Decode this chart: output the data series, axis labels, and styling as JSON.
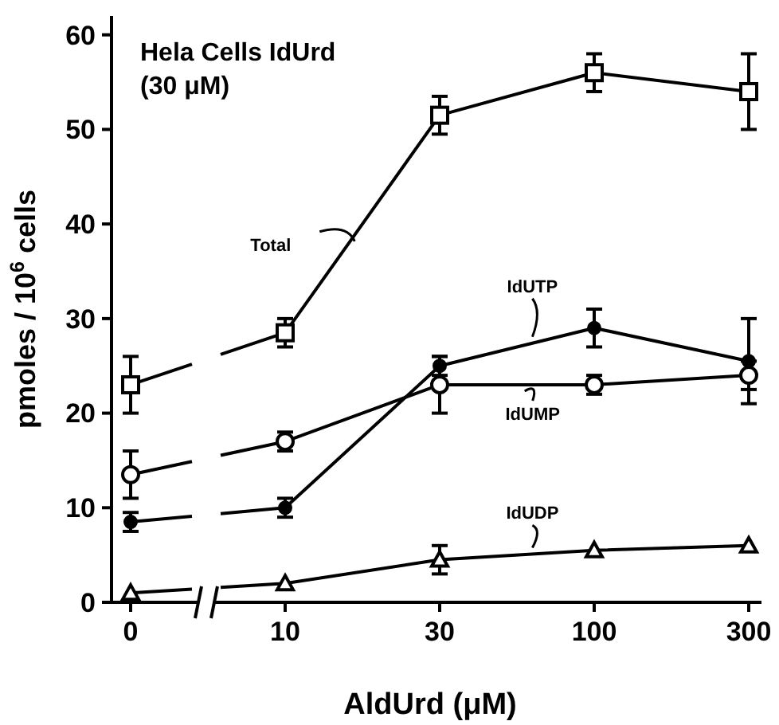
{
  "chart_data": {
    "type": "line",
    "title": "Hela Cells IdUrd\n(30 μM)",
    "xlabel": "AldUrd (μM)",
    "ylabel": "pmoles / 10$^{6}$ cells",
    "categories": [
      "0",
      "10",
      "30",
      "100",
      "300"
    ],
    "series": [
      {
        "name": "Total",
        "color": "#000000",
        "marker": "square",
        "values": [
          23,
          28.5,
          51.5,
          56,
          54
        ],
        "errors": [
          3,
          1.5,
          2,
          2,
          4
        ]
      },
      {
        "name": "IdUTP",
        "color": "#000000",
        "marker": "circle-filled",
        "values": [
          8.5,
          10,
          25,
          29,
          25.5
        ],
        "errors": [
          1,
          1,
          1,
          2,
          4.5
        ]
      },
      {
        "name": "IdUMP",
        "color": "#000000",
        "marker": "circle",
        "values": [
          13.5,
          17,
          23,
          23,
          24
        ],
        "errors": [
          2.5,
          1,
          3,
          1,
          1.5
        ]
      },
      {
        "name": "IdUDP",
        "color": "#000000",
        "marker": "triangle",
        "values": [
          1,
          2,
          4.5,
          5.5,
          6
        ],
        "errors": [
          null,
          null,
          1.5,
          null,
          null
        ]
      }
    ],
    "ylim": [
      0,
      62
    ],
    "yticks": [
      0,
      10,
      20,
      30,
      40,
      50,
      60
    ],
    "grid": false
  }
}
